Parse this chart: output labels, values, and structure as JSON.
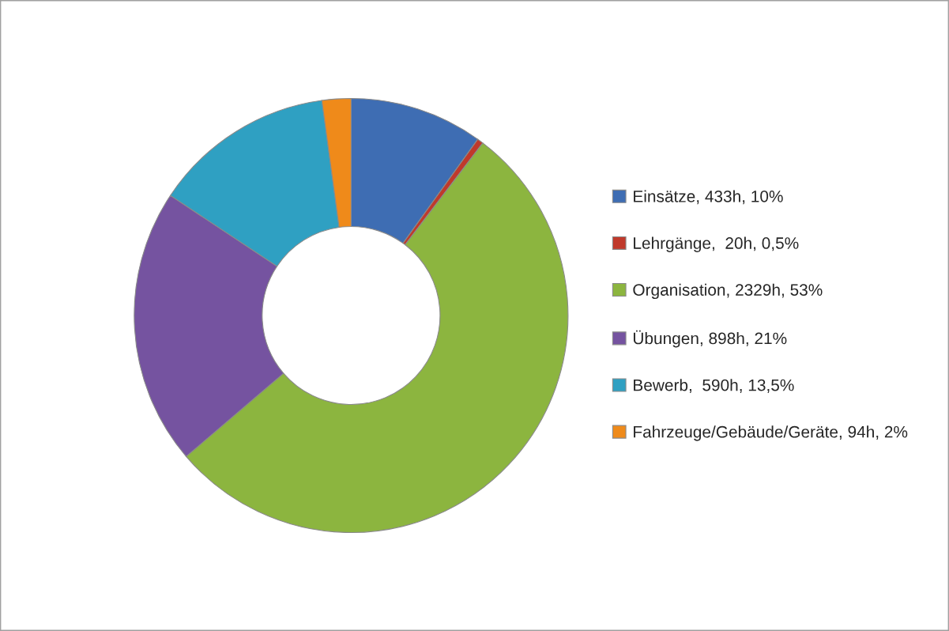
{
  "chart_data": {
    "type": "donut",
    "categories": [
      "Einsätze, 433h, 10%",
      "Lehrgänge,  20h, 0,5%",
      "Organisation, 2329h, 53%",
      "Übungen, 898h, 21%",
      "Bewerb,  590h, 13,5%",
      "Fahrzeuge/Gebäude/Geräte, 94h, 2%"
    ],
    "values": [
      433,
      20,
      2329,
      898,
      590,
      94
    ],
    "colors": [
      "#3e6db3",
      "#c0392b",
      "#8cb53f",
      "#7553a0",
      "#2fa0c2",
      "#ef8a1a"
    ],
    "legend": "right"
  }
}
